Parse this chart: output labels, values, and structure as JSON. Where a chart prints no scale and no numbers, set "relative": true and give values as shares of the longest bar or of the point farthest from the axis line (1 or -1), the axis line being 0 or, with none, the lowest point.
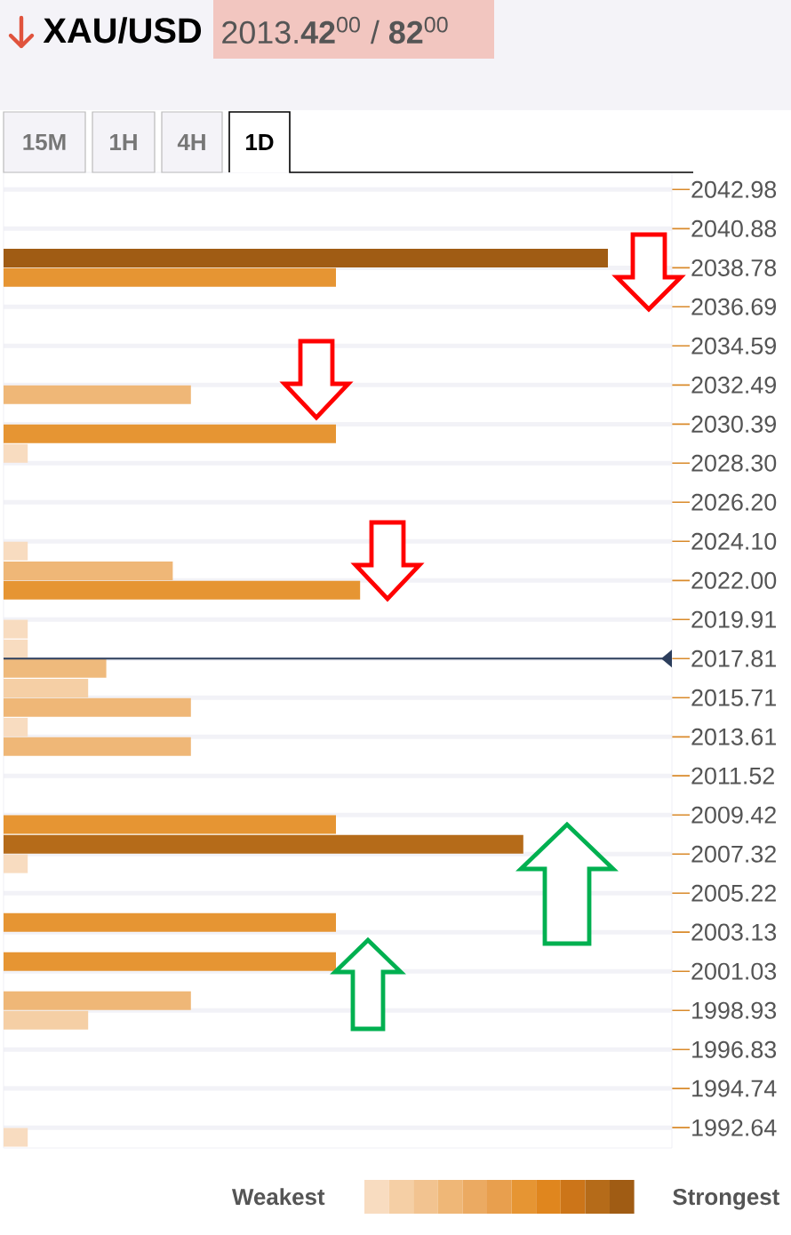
{
  "chart_data": {
    "type": "bar",
    "orientation": "horizontal",
    "relative": true,
    "title": "XAU/USD",
    "subtitle": "2013.**42**$^{00}$ / **82**$^{00}$",
    "annotations": [
      "15M",
      "1H",
      "4H",
      "1D",
      "Weakest",
      "Strongest"
    ],
    "x": [
      2039.3,
      2038.26,
      2031.97,
      2029.87,
      2028.82,
      2023.58,
      2022.52,
      2021.48,
      2019.39,
      2018.33,
      2017.29,
      2016.23,
      2015.19,
      2014.13,
      2013.09,
      2008.9,
      2007.84,
      2006.8,
      2003.65,
      2001.55,
      1999.45,
      1998.41,
      1992.12
    ],
    "values": [
      1,
      0.55,
      0.31,
      0.55,
      0.04,
      0.04,
      0.28,
      0.59,
      0.04,
      0.04,
      0.17,
      0.14,
      0.31,
      0.04,
      0.31,
      0.55,
      0.86,
      0.04,
      0.55,
      0.55,
      0.31,
      0.14,
      0.04
    ],
    "colors": [
      "#a05c14",
      "#e69533",
      "#efb777",
      "#e69533",
      "#f8dcc0",
      "#f8dcc0",
      "#efb777",
      "#e69533",
      "#f8dcc0",
      "#f8dcc0",
      "#efba7c",
      "#f5cfa5",
      "#efb777",
      "#f8dcc0",
      "#efb777",
      "#e69533",
      "#b56b19",
      "#f8dcc0",
      "#e69533",
      "#e69533",
      "#efb777",
      "#f5cfa5",
      "#f8dcc0"
    ],
    "ylim": [
      1991.55,
      2043.9
    ],
    "yticks": [
      2042.98,
      2040.88,
      2038.78,
      2036.69,
      2034.59,
      2032.49,
      2030.39,
      {
        "value": 2028.3,
        "label": "2028.30"
      },
      {
        "value": 2026.2,
        "label": "2026.20"
      },
      {
        "value": 2024.1,
        "label": "2024.10"
      },
      {
        "value": 2022.0,
        "label": "2022.00"
      },
      2019.91,
      2017.81,
      2015.71,
      2013.61,
      2011.52,
      2009.42,
      2007.32,
      2005.22,
      2003.13,
      2001.03,
      1998.93,
      1996.83,
      1994.74,
      1992.64
    ],
    "grid": "y",
    "ref_lines": [
      {
        "axis": "y",
        "value": 2017.81,
        "color": "#2c3e5c"
      }
    ]
  }
}
